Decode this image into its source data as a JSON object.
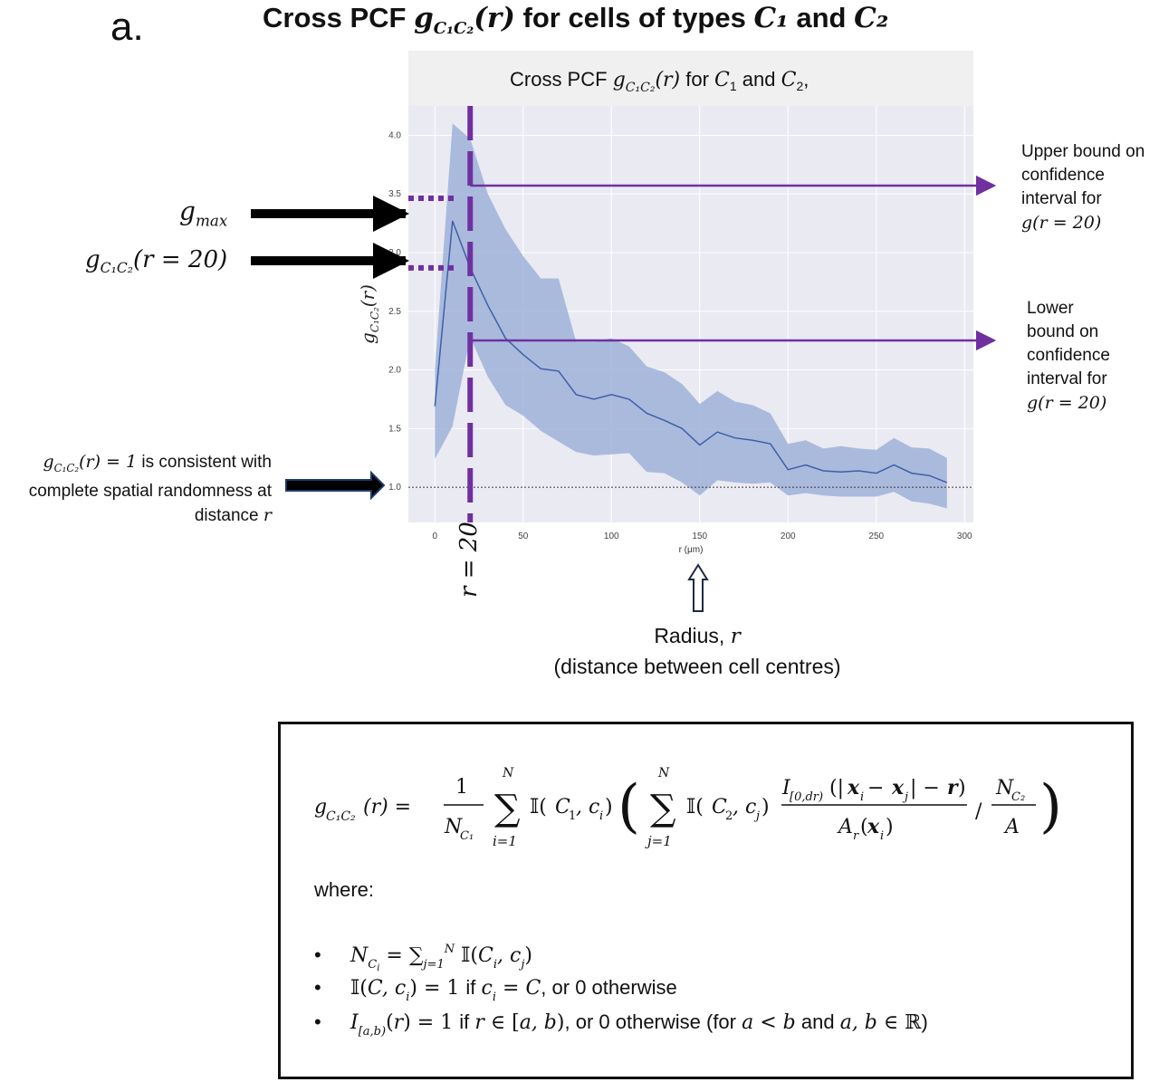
{
  "panel_label": "a.",
  "figure_title": {
    "prefix": "Cross PCF ",
    "symbol": "g",
    "sub": "C₁C₂",
    "arg": "(r)",
    "middle": " for cells of types ",
    "c1": "C₁",
    "and": " and ",
    "c2": "C₂"
  },
  "chart_data": {
    "type": "area",
    "title": "Cross PCF g_{C1C2}(r) for C1 and C2,",
    "xlabel": "r (μm)",
    "ylabel": "g_{C1C2}(r)",
    "xlim": [
      -15,
      305
    ],
    "ylim": [
      0.7,
      4.25
    ],
    "xticks": [
      0,
      50,
      100,
      150,
      200,
      250,
      300
    ],
    "yticks": [
      1.0,
      1.5,
      2.0,
      2.5,
      3.0,
      3.5,
      4.0
    ],
    "tick_labels_x": [
      "0",
      "50",
      "100",
      "150",
      "200",
      "250",
      "300"
    ],
    "tick_labels_y": [
      "1.0",
      "1.5",
      "2.0",
      "2.5",
      "3.0",
      "3.5",
      "4.0"
    ],
    "grid": true,
    "reference_line": 1.0,
    "marker_r": 20,
    "series": [
      {
        "x": [
          0,
          10,
          20,
          30,
          40,
          50,
          60,
          70,
          80,
          90,
          100,
          110,
          120,
          130,
          140,
          150,
          160,
          170,
          180,
          190,
          200,
          210,
          220,
          230,
          240,
          250,
          260,
          270,
          280,
          290
        ],
        "y": [
          1.69,
          3.27,
          2.87,
          2.55,
          2.27,
          2.13,
          2.01,
          1.99,
          1.79,
          1.75,
          1.79,
          1.75,
          1.63,
          1.57,
          1.5,
          1.36,
          1.47,
          1.42,
          1.4,
          1.37,
          1.15,
          1.19,
          1.14,
          1.13,
          1.14,
          1.12,
          1.19,
          1.12,
          1.1,
          1.04
        ],
        "upper": [
          2.01,
          4.1,
          3.97,
          3.5,
          3.2,
          2.97,
          2.78,
          2.78,
          2.24,
          2.24,
          2.27,
          2.2,
          2.03,
          1.98,
          1.88,
          1.71,
          1.82,
          1.73,
          1.7,
          1.63,
          1.37,
          1.4,
          1.33,
          1.35,
          1.33,
          1.32,
          1.42,
          1.34,
          1.33,
          1.25
        ],
        "lower": [
          1.24,
          1.52,
          2.28,
          1.94,
          1.7,
          1.61,
          1.48,
          1.39,
          1.3,
          1.27,
          1.28,
          1.29,
          1.13,
          1.12,
          1.04,
          0.93,
          1.06,
          1.04,
          1.03,
          1.04,
          0.93,
          0.95,
          0.93,
          0.92,
          0.92,
          0.92,
          0.96,
          0.88,
          0.86,
          0.82
        ]
      }
    ],
    "colors": {
      "band": "#9fb2d9",
      "line": "#3f5fa8",
      "panel": "#eaeaf2",
      "title_bar": "#f0f0f0",
      "annotation": "#7030a0"
    }
  },
  "annotations": {
    "gmax": "g_{max}",
    "g20": "g_{C₁C₂}(r = 20)",
    "randomness_math": "g_{C₁C₂}(r) = 1",
    "randomness_text_1": " is consistent with",
    "randomness_text_2": "complete spatial randomness at",
    "randomness_text_3": "distance ",
    "randomness_r": "r",
    "r20": "r = 20",
    "upper_1": "Upper bound on",
    "upper_2": "confidence",
    "upper_3": "interval for",
    "upper_4": "g(r = 20)",
    "lower_1": "Lower",
    "lower_2": "bound on",
    "lower_3": "confidence",
    "lower_4": "interval for",
    "lower_5": "g(r = 20)",
    "radius_1": "Radius, ",
    "radius_r": "r",
    "radius_2": "(distance between cell centres)"
  },
  "formula": {
    "where": "where:",
    "bullet_1_tail": " = ∑",
    "bullet_2_tail": " = 1 if ",
    "bullet_2_end": ", or 0 otherwise",
    "bullet_3_mid": " = 1 if ",
    "bullet_3_end": ", or 0 otherwise (for ",
    "bullet_3_close": ")"
  }
}
